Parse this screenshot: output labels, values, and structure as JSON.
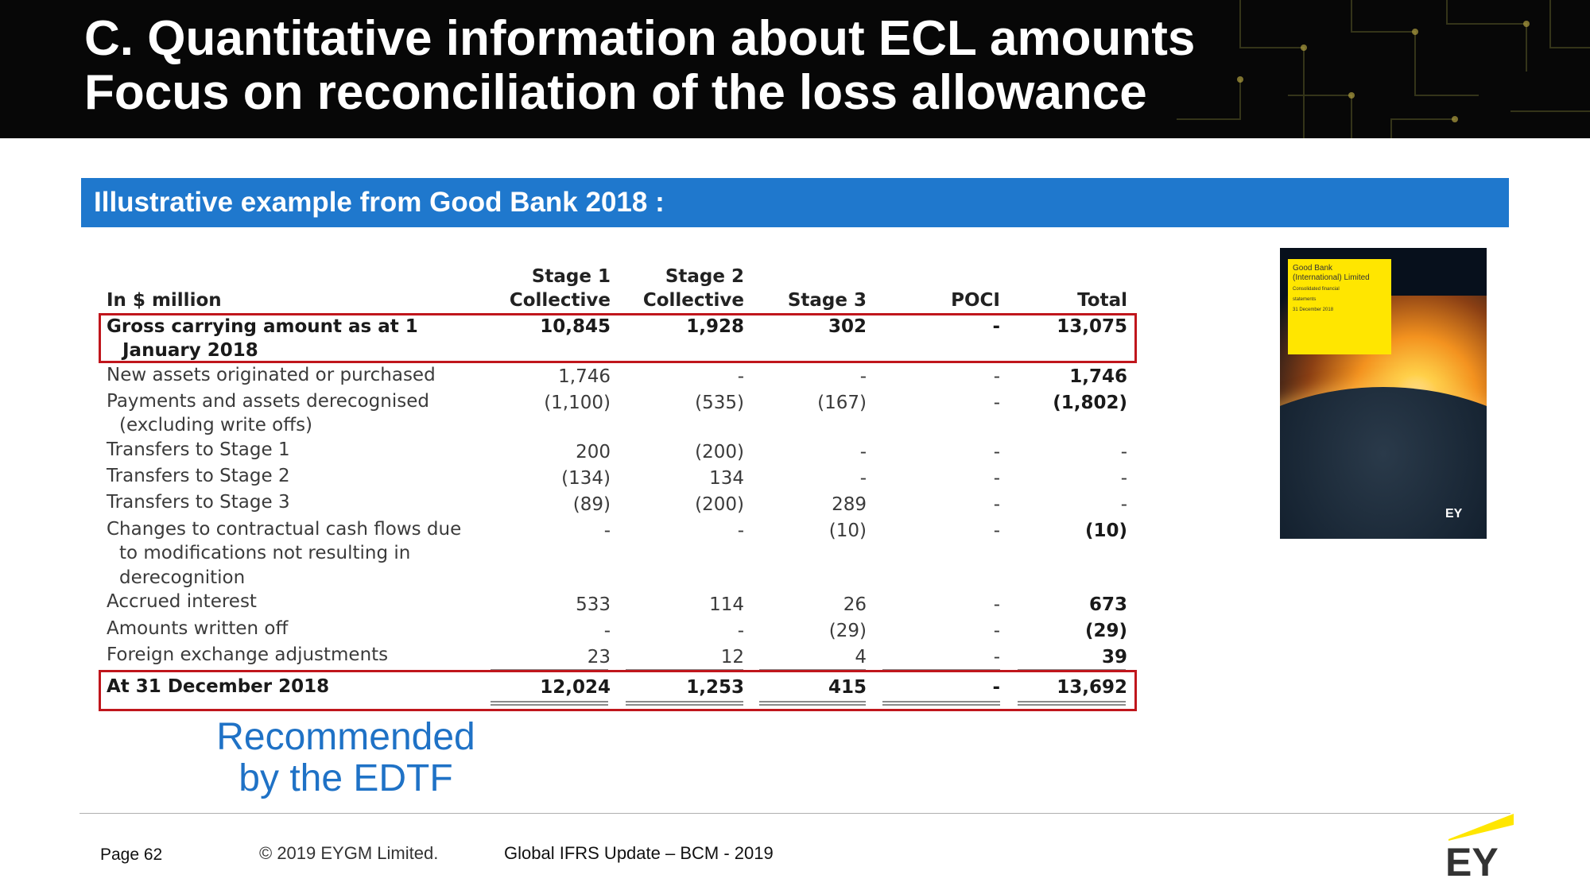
{
  "header": {
    "title_line1": "C. Quantitative information about ECL amounts",
    "title_line2": "Focus on reconciliation of the loss allowance"
  },
  "band": {
    "text": "Illustrative example from Good Bank 2018 :"
  },
  "table": {
    "unit_label": "In $ million",
    "columns": [
      {
        "line1": "Stage 1",
        "line2": "Collective"
      },
      {
        "line1": "Stage 2",
        "line2": "Collective"
      },
      {
        "line1": "",
        "line2": "Stage 3"
      },
      {
        "line1": "",
        "line2": "POCI"
      },
      {
        "line1": "",
        "line2": "Total"
      }
    ],
    "rows": [
      {
        "label": [
          "Gross carrying amount as at 1",
          "January 2018"
        ],
        "values": [
          "10,845",
          "1,928",
          "302",
          "-",
          "13,075"
        ],
        "bold": true
      },
      {
        "label": [
          "New assets originated or purchased"
        ],
        "values": [
          "1,746",
          "-",
          "-",
          "-",
          "1,746"
        ]
      },
      {
        "label": [
          "Payments and assets derecognised",
          "(excluding write offs)"
        ],
        "values": [
          "(1,100)",
          "(535)",
          "(167)",
          "-",
          "(1,802)"
        ]
      },
      {
        "label": [
          "Transfers to Stage 1"
        ],
        "values": [
          "200",
          "(200)",
          "-",
          "-",
          "-"
        ]
      },
      {
        "label": [
          "Transfers to Stage 2"
        ],
        "values": [
          "(134)",
          "134",
          "-",
          "-",
          "-"
        ]
      },
      {
        "label": [
          "Transfers to Stage 3"
        ],
        "values": [
          "(89)",
          "(200)",
          "289",
          "-",
          "-"
        ]
      },
      {
        "label": [
          "Changes to contractual cash flows due",
          "to modifications not resulting in",
          "derecognition"
        ],
        "values": [
          "-",
          "-",
          "(10)",
          "-",
          "(10)"
        ]
      },
      {
        "label": [
          "Accrued interest"
        ],
        "values": [
          "533",
          "114",
          "26",
          "-",
          "673"
        ]
      },
      {
        "label": [
          "Amounts written off"
        ],
        "values": [
          "-",
          "-",
          "(29)",
          "-",
          "(29)"
        ]
      },
      {
        "label": [
          "Foreign exchange adjustments"
        ],
        "values": [
          "23",
          "12",
          "4",
          "-",
          "39"
        ]
      },
      {
        "label": [
          "At 31 December 2018"
        ],
        "values": [
          "12,024",
          "1,253",
          "415",
          "-",
          "13,692"
        ],
        "bold": true
      }
    ]
  },
  "cover": {
    "title_line1": "Good Bank",
    "title_line2": "(International) Limited",
    "sub_line1": "Consolidated financial",
    "sub_line2": "statements",
    "date": "31 December 2018",
    "logo": "EY"
  },
  "recommendation": {
    "line1": "Recommended",
    "line2": "by the EDTF"
  },
  "footer": {
    "page": "Page 62",
    "copyright": "© 2019 EYGM Limited.",
    "event": "Global IFRS Update – BCM - 2019",
    "logo": "EY"
  },
  "colors": {
    "band": "#1f78cd",
    "highlight_box": "#c0161c",
    "recommendation": "#1f72c6",
    "ey_yellow": "#ffe600"
  }
}
